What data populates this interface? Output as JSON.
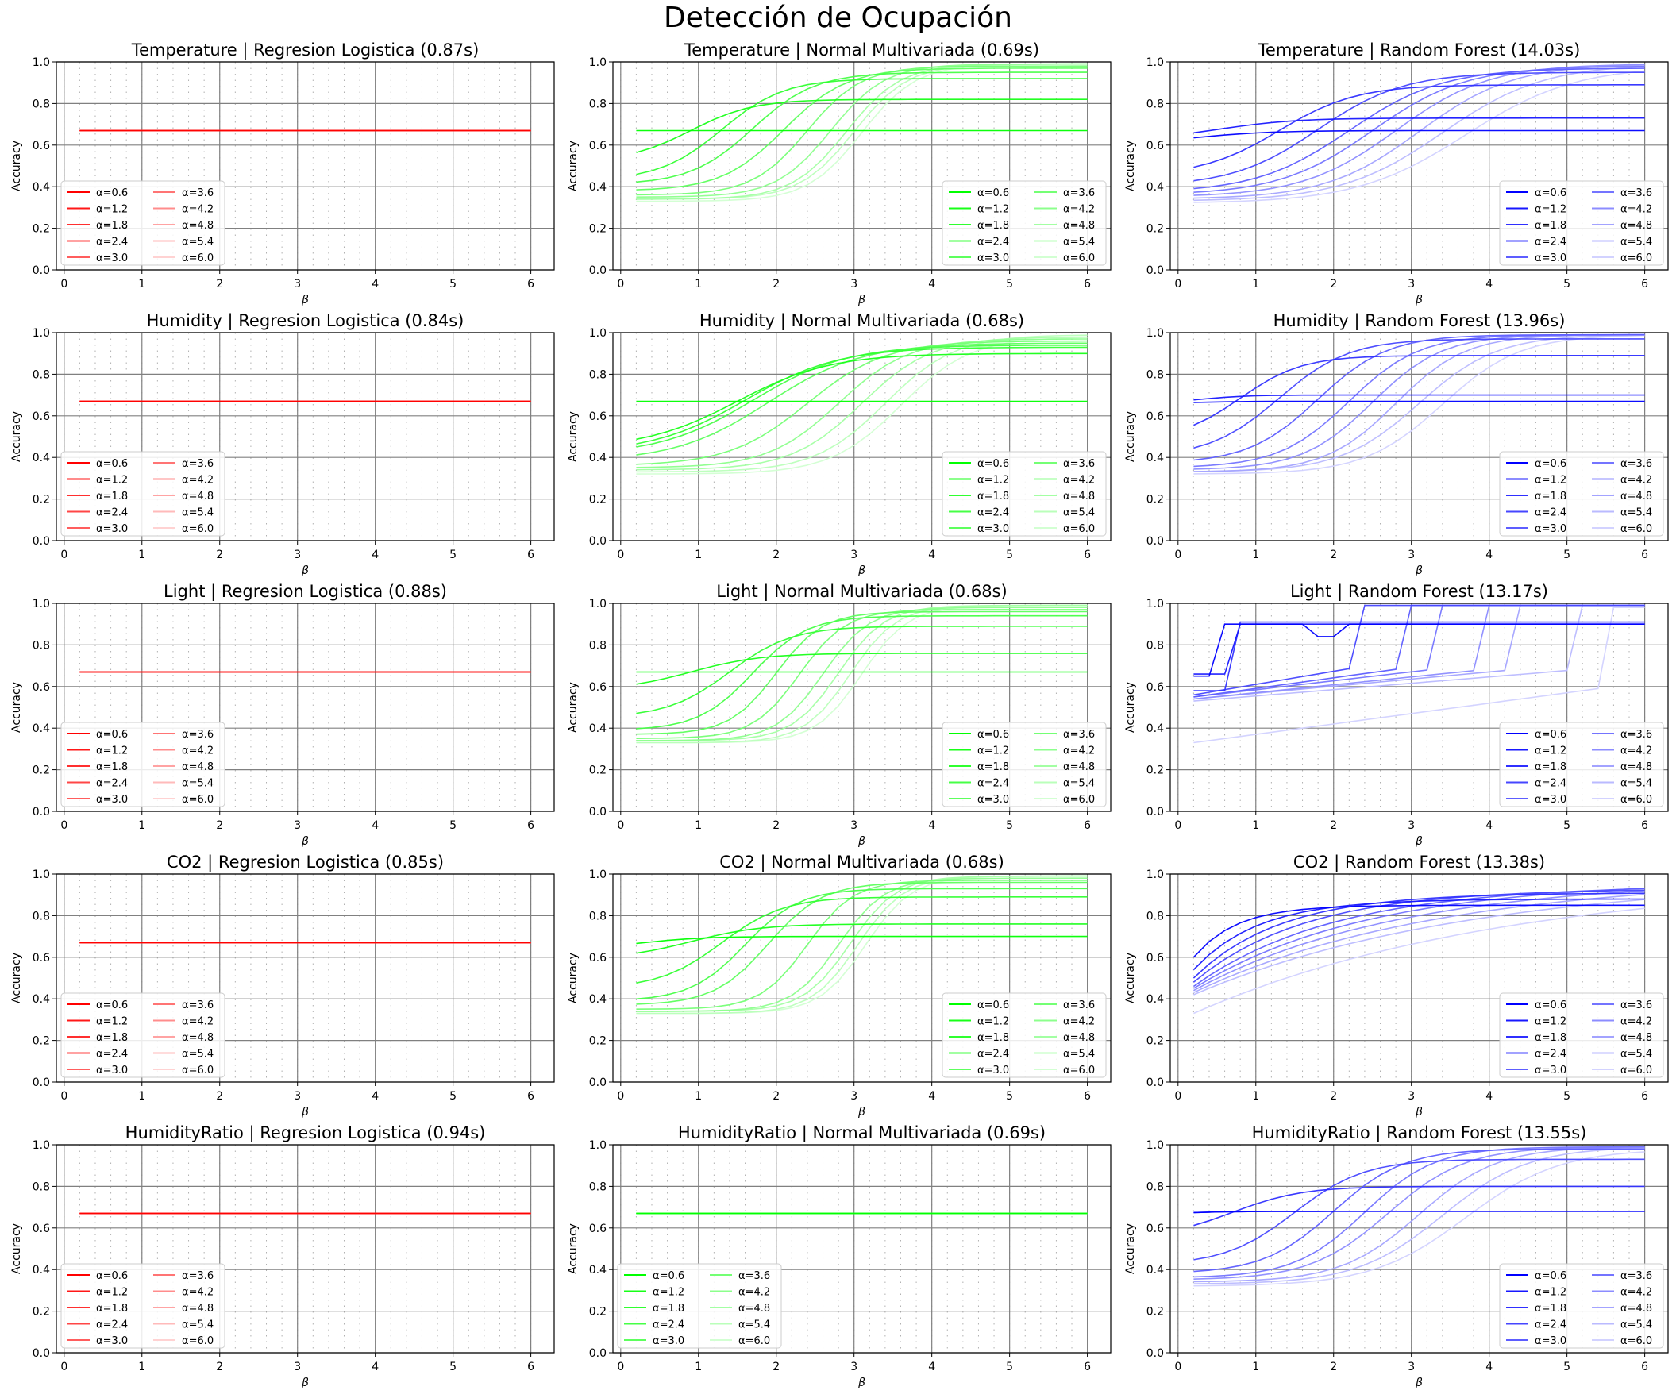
{
  "figure": {
    "title": "Detección de Ocupación"
  },
  "common": {
    "xlabel": "β",
    "ylabel": "Accuracy",
    "xlim": [
      -0.1,
      6.3
    ],
    "ylim": [
      0.0,
      1.0
    ],
    "xticks": [
      "0",
      "1",
      "2",
      "3",
      "4",
      "5",
      "6"
    ],
    "yticks": [
      "0.0",
      "0.2",
      "0.4",
      "0.6",
      "0.8",
      "1.0"
    ],
    "alphas": [
      "α=0.6",
      "α=1.2",
      "α=1.8",
      "α=2.4",
      "α=3.0",
      "α=3.6",
      "α=4.2",
      "α=4.8",
      "α=5.4",
      "α=6.0"
    ],
    "colors": {
      "logistic": "#ff0000",
      "normal": "#00ff00",
      "forest": "#0000ff"
    },
    "grid": true
  },
  "chart_data": [
    {
      "type": "line",
      "title": "Temperature | Regresion Logistica (0.87s)",
      "xlabel": "β",
      "ylabel": "Accuracy",
      "ylim": [
        0,
        1
      ],
      "color": "#ff0000",
      "legend": "bottom-left",
      "pattern": "flat",
      "params": {
        "base": 0.67
      }
    },
    {
      "type": "line",
      "title": "Temperature | Normal Multivariada (0.69s)",
      "xlabel": "β",
      "ylabel": "Accuracy",
      "ylim": [
        0,
        1
      ],
      "color": "#00ff00",
      "legend": "bottom-right",
      "pattern": "sigmoid",
      "params": {
        "start": [
          0.67,
          0.52,
          0.43,
          0.41,
          0.38,
          0.36,
          0.35,
          0.34,
          0.34,
          0.33
        ],
        "end": [
          0.67,
          0.82,
          0.92,
          0.95,
          0.97,
          0.98,
          0.99,
          0.99,
          0.99,
          0.99
        ],
        "mid": [
          0.3,
          0.9,
          1.3,
          1.7,
          2.1,
          2.4,
          2.7,
          2.9,
          3.0,
          3.1
        ],
        "width": [
          0.4,
          0.4,
          0.4,
          0.4,
          0.4,
          0.35,
          0.35,
          0.35,
          0.35,
          0.35
        ]
      }
    },
    {
      "type": "line",
      "title": "Temperature | Random Forest (14.03s)",
      "xlabel": "β",
      "ylabel": "Accuracy",
      "ylim": [
        0,
        1
      ],
      "color": "#0000ff",
      "legend": "bottom-right",
      "pattern": "sigmoid",
      "params": {
        "start": [
          0.6,
          0.62,
          0.45,
          0.4,
          0.37,
          0.36,
          0.35,
          0.34,
          0.33,
          0.32
        ],
        "end": [
          0.67,
          0.73,
          0.89,
          0.95,
          0.97,
          0.98,
          0.99,
          0.99,
          0.99,
          0.98
        ],
        "mid": [
          0.2,
          0.5,
          1.3,
          1.8,
          2.2,
          2.5,
          2.8,
          3.1,
          3.4,
          3.7
        ],
        "width": [
          0.5,
          0.5,
          0.5,
          0.55,
          0.6,
          0.6,
          0.6,
          0.6,
          0.65,
          0.7
        ]
      }
    },
    {
      "type": "line",
      "title": "Humidity | Regresion Logistica (0.84s)",
      "xlabel": "β",
      "ylabel": "Accuracy",
      "ylim": [
        0,
        1
      ],
      "color": "#ff0000",
      "legend": "bottom-left",
      "pattern": "flat",
      "params": {
        "base": 0.67
      }
    },
    {
      "type": "line",
      "title": "Humidity | Normal Multivariada (0.68s)",
      "xlabel": "β",
      "ylabel": "Accuracy",
      "ylim": [
        0,
        1
      ],
      "color": "#00ff00",
      "legend": "bottom-right",
      "pattern": "sigmoid",
      "params": {
        "start": [
          0.67,
          0.44,
          0.42,
          0.41,
          0.38,
          0.36,
          0.35,
          0.34,
          0.33,
          0.32
        ],
        "end": [
          0.67,
          0.9,
          0.93,
          0.94,
          0.95,
          0.96,
          0.97,
          0.98,
          0.99,
          0.98
        ],
        "mid": [
          0.3,
          1.5,
          1.6,
          1.7,
          1.9,
          2.4,
          2.8,
          3.1,
          3.4,
          3.6
        ],
        "width": [
          0.4,
          0.6,
          0.6,
          0.6,
          0.6,
          0.5,
          0.45,
          0.45,
          0.45,
          0.45
        ]
      }
    },
    {
      "type": "line",
      "title": "Humidity | Random Forest (13.96s)",
      "xlabel": "β",
      "ylabel": "Accuracy",
      "ylim": [
        0,
        1
      ],
      "color": "#0000ff",
      "legend": "bottom-right",
      "pattern": "sigmoid",
      "params": {
        "start": [
          0.66,
          0.66,
          0.48,
          0.4,
          0.37,
          0.35,
          0.34,
          0.33,
          0.33,
          0.32
        ],
        "end": [
          0.67,
          0.7,
          0.89,
          0.97,
          0.99,
          0.99,
          0.99,
          0.99,
          0.99,
          0.99
        ],
        "mid": [
          0.3,
          0.3,
          0.8,
          1.3,
          1.8,
          2.2,
          2.5,
          2.8,
          3.1,
          3.4
        ],
        "width": [
          0.3,
          0.3,
          0.4,
          0.45,
          0.45,
          0.45,
          0.45,
          0.45,
          0.5,
          0.5
        ]
      }
    },
    {
      "type": "line",
      "title": "Light | Regresion Logistica (0.88s)",
      "xlabel": "β",
      "ylabel": "Accuracy",
      "ylim": [
        0,
        1
      ],
      "color": "#ff0000",
      "legend": "bottom-left",
      "pattern": "flat",
      "params": {
        "base": 0.67
      }
    },
    {
      "type": "line",
      "title": "Light | Normal Multivariada (0.68s)",
      "xlabel": "β",
      "ylabel": "Accuracy",
      "ylim": [
        0,
        1
      ],
      "color": "#00ff00",
      "legend": "bottom-right",
      "pattern": "sigmoid",
      "params": {
        "start": [
          0.67,
          0.58,
          0.45,
          0.39,
          0.37,
          0.35,
          0.34,
          0.34,
          0.33,
          0.33
        ],
        "end": [
          0.67,
          0.76,
          0.89,
          0.94,
          0.96,
          0.97,
          0.98,
          0.99,
          0.99,
          0.99
        ],
        "mid": [
          0.3,
          0.9,
          1.4,
          1.7,
          2.0,
          2.3,
          2.6,
          2.8,
          2.95,
          3.1
        ],
        "width": [
          0.4,
          0.45,
          0.4,
          0.35,
          0.3,
          0.3,
          0.3,
          0.3,
          0.3,
          0.3
        ]
      }
    },
    {
      "type": "line",
      "title": "Light | Random Forest (13.17s)",
      "xlabel": "β",
      "ylabel": "Accuracy",
      "ylim": [
        0,
        1
      ],
      "color": "#0000ff",
      "legend": "bottom-right",
      "pattern": "steps",
      "params": {
        "low": [
          0.65,
          0.66,
          0.58,
          0.56,
          0.55,
          0.55,
          0.54,
          0.54,
          0.53,
          0.33
        ],
        "high": [
          0.9,
          0.9,
          0.91,
          0.99,
          0.99,
          0.99,
          0.99,
          0.99,
          0.99,
          0.98
        ],
        "jump": [
          0.5,
          0.7,
          0.8,
          2.3,
          2.9,
          3.4,
          4.0,
          4.4,
          5.1,
          5.6
        ]
      }
    },
    {
      "type": "line",
      "title": "CO2 | Regresion Logistica (0.85s)",
      "xlabel": "β",
      "ylabel": "Accuracy",
      "ylim": [
        0,
        1
      ],
      "color": "#ff0000",
      "legend": "bottom-left",
      "pattern": "flat",
      "params": {
        "base": 0.67
      }
    },
    {
      "type": "line",
      "title": "CO2 | Normal Multivariada (0.68s)",
      "xlabel": "β",
      "ylabel": "Accuracy",
      "ylim": [
        0,
        1
      ],
      "color": "#00ff00",
      "legend": "bottom-right",
      "pattern": "sigmoid",
      "params": {
        "start": [
          0.64,
          0.59,
          0.45,
          0.39,
          0.37,
          0.35,
          0.34,
          0.34,
          0.33,
          0.33
        ],
        "end": [
          0.7,
          0.76,
          0.89,
          0.93,
          0.96,
          0.97,
          0.98,
          0.99,
          0.99,
          0.99
        ],
        "mid": [
          0.3,
          0.9,
          1.3,
          1.6,
          1.9,
          2.4,
          2.8,
          2.95,
          3.05,
          3.15
        ],
        "width": [
          0.4,
          0.45,
          0.4,
          0.35,
          0.35,
          0.3,
          0.3,
          0.3,
          0.3,
          0.3
        ]
      }
    },
    {
      "type": "line",
      "title": "CO2 | Random Forest (13.38s)",
      "xlabel": "β",
      "ylabel": "Accuracy",
      "ylim": [
        0,
        1
      ],
      "color": "#0000ff",
      "legend": "bottom-right",
      "pattern": "rise",
      "params": {
        "start": [
          0.6,
          0.54,
          0.5,
          0.48,
          0.46,
          0.45,
          0.44,
          0.43,
          0.42,
          0.33
        ],
        "end": [
          0.85,
          0.88,
          0.91,
          0.93,
          0.95,
          0.97,
          0.98,
          0.99,
          0.99,
          0.99
        ],
        "k": [
          1.8,
          1.2,
          0.9,
          0.7,
          0.55,
          0.45,
          0.38,
          0.32,
          0.28,
          0.25
        ]
      }
    },
    {
      "type": "line",
      "title": "HumidityRatio | Regresion Logistica (0.94s)",
      "xlabel": "β",
      "ylabel": "Accuracy",
      "ylim": [
        0,
        1
      ],
      "color": "#ff0000",
      "legend": "bottom-left",
      "pattern": "flat",
      "params": {
        "base": 0.67
      }
    },
    {
      "type": "line",
      "title": "HumidityRatio | Normal Multivariada (0.69s)",
      "xlabel": "β",
      "ylabel": "Accuracy",
      "ylim": [
        0,
        1
      ],
      "color": "#00ff00",
      "legend": "bottom-left",
      "pattern": "flat",
      "params": {
        "base": 0.67
      }
    },
    {
      "type": "line",
      "title": "HumidityRatio | Random Forest (13.55s)",
      "xlabel": "β",
      "ylabel": "Accuracy",
      "ylim": [
        0,
        1
      ],
      "color": "#0000ff",
      "legend": "bottom-right",
      "pattern": "sigmoid",
      "params": {
        "start": [
          0.67,
          0.67,
          0.55,
          0.42,
          0.38,
          0.36,
          0.35,
          0.34,
          0.33,
          0.32
        ],
        "end": [
          0.68,
          0.68,
          0.8,
          0.93,
          0.98,
          0.99,
          0.99,
          0.99,
          0.99,
          0.98
        ],
        "mid": [
          0.3,
          0.3,
          0.7,
          1.5,
          2.0,
          2.4,
          2.7,
          3.1,
          3.4,
          3.7
        ],
        "width": [
          0.3,
          0.3,
          0.45,
          0.45,
          0.45,
          0.45,
          0.5,
          0.5,
          0.55,
          0.6
        ]
      }
    }
  ]
}
